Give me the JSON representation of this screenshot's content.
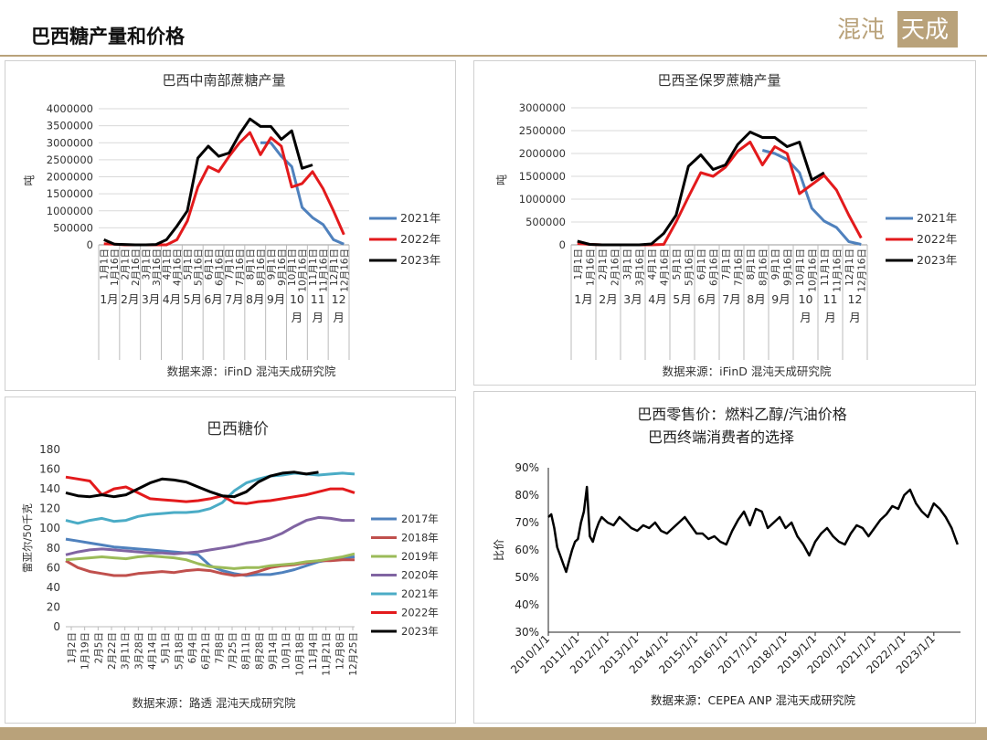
{
  "page": {
    "title": "巴西糖产量和价格",
    "logo_text": "混沌天成"
  },
  "colors": {
    "accent": "#b9a27a",
    "y2021": "#4f81bd",
    "y2022": "#e31a1c",
    "y2023": "#000000",
    "y2017": "#4f81bd",
    "y2018": "#c0504d",
    "y2019": "#9bbb59",
    "y2020": "#8064a2",
    "y2021b": "#4bacc6"
  },
  "chart_data": [
    {
      "type": "line",
      "title": "巴西中南部蔗糖产量",
      "ylabel": "吨",
      "source": "数据来源：iFinD 混沌天成研究院",
      "ylim": [
        0,
        4000000
      ],
      "yticks": [
        "0",
        "500000",
        "1000000",
        "1500000",
        "2000000",
        "2500000",
        "3000000",
        "3500000",
        "4000000"
      ],
      "xticks": [
        "1月1日",
        "1月16日",
        "2月1日",
        "2月16日",
        "3月1日",
        "3月16日",
        "4月1日",
        "4月16日",
        "5月1日",
        "5月16日",
        "6月1日",
        "6月16日",
        "7月1日",
        "7月16日",
        "8月1日",
        "8月16日",
        "9月1日",
        "9月16日",
        "10月1日",
        "10月16日",
        "11月1日",
        "11月16日",
        "12月1日",
        "12月16日"
      ],
      "months": [
        "1月",
        "2月",
        "3月",
        "4月",
        "5月",
        "6月",
        "7月",
        "8月",
        "9月",
        "10\n月",
        "11\n月",
        "12\n月"
      ],
      "series": [
        {
          "name": "2021年",
          "values": [
            null,
            null,
            null,
            null,
            null,
            null,
            null,
            null,
            null,
            null,
            null,
            null,
            null,
            null,
            null,
            3000000,
            3000000,
            2600000,
            2300000,
            1100000,
            800000,
            600000,
            150000,
            20000
          ]
        },
        {
          "name": "2022年",
          "values": [
            30000,
            20000,
            0,
            0,
            0,
            0,
            0,
            150000,
            700000,
            1700000,
            2300000,
            2150000,
            2600000,
            3000000,
            3300000,
            2650000,
            3150000,
            2900000,
            1700000,
            1800000,
            2150000,
            1650000,
            1000000,
            300000
          ]
        },
        {
          "name": "2023年",
          "values": [
            150000,
            20000,
            10000,
            0,
            0,
            10000,
            150000,
            550000,
            1000000,
            2550000,
            2900000,
            2600000,
            2700000,
            3250000,
            3700000,
            3480000,
            3480000,
            3100000,
            3350000,
            2250000,
            2350000,
            null,
            null,
            null
          ]
        }
      ]
    },
    {
      "type": "line",
      "title": "巴西圣保罗蔗糖产量",
      "ylabel": "吨",
      "source": "数据来源：iFinD 混沌天成研究院",
      "ylim": [
        0,
        3000000
      ],
      "yticks": [
        "0",
        "500000",
        "1000000",
        "1500000",
        "2000000",
        "2500000",
        "3000000"
      ],
      "xticks": [
        "1月1日",
        "1月16日",
        "2月1日",
        "2月16日",
        "3月1日",
        "3月16日",
        "4月1日",
        "4月16日",
        "5月1日",
        "5月16日",
        "6月1日",
        "6月16日",
        "7月1日",
        "7月16日",
        "8月1日",
        "8月16日",
        "9月1日",
        "9月16日",
        "10月1日",
        "10月16日",
        "11月1日",
        "11月16日",
        "12月1日",
        "12月16日"
      ],
      "months": [
        "1月",
        "2月",
        "3月",
        "4月",
        "5月",
        "6月",
        "7月",
        "8月",
        "9月",
        "10\n月",
        "11\n月",
        "12\n月"
      ],
      "series": [
        {
          "name": "2021年",
          "values": [
            null,
            null,
            null,
            null,
            null,
            null,
            null,
            null,
            null,
            null,
            null,
            null,
            null,
            null,
            null,
            2070000,
            2000000,
            1870000,
            1580000,
            800000,
            520000,
            380000,
            70000,
            10000
          ]
        },
        {
          "name": "2022年",
          "values": [
            30000,
            10000,
            0,
            0,
            0,
            0,
            0,
            10000,
            500000,
            1050000,
            1580000,
            1500000,
            1700000,
            2050000,
            2250000,
            1750000,
            2150000,
            2000000,
            1120000,
            1320000,
            1520000,
            1200000,
            650000,
            150000
          ]
        },
        {
          "name": "2023年",
          "values": [
            80000,
            10000,
            0,
            0,
            0,
            0,
            20000,
            250000,
            650000,
            1720000,
            1970000,
            1650000,
            1750000,
            2200000,
            2470000,
            2350000,
            2350000,
            2150000,
            2250000,
            1420000,
            1580000,
            null,
            null,
            null
          ]
        }
      ]
    },
    {
      "type": "line",
      "title": "巴西糖价",
      "ylabel": "雷亚尔/50千克",
      "source": "数据来源：路透 混沌天成研究院",
      "ylim": [
        0,
        180
      ],
      "yticks": [
        "0",
        "20",
        "40",
        "60",
        "80",
        "100",
        "120",
        "140",
        "160",
        "180"
      ],
      "xticks": [
        "1月2日",
        "1月19日",
        "2月5日",
        "2月22日",
        "3月11日",
        "3月28日",
        "4月14日",
        "5月1日",
        "5月18日",
        "6月4日",
        "6月21日",
        "7月8日",
        "7月25日",
        "8月11日",
        "8月28日",
        "9月14日",
        "10月1日",
        "10月18日",
        "11月4日",
        "11月21日",
        "12月8日",
        "12月25日"
      ],
      "series": [
        {
          "name": "2017年",
          "values": [
            89,
            87,
            85,
            83,
            81,
            80,
            79,
            78,
            77,
            76,
            75,
            73,
            62,
            57,
            54,
            52,
            53,
            53,
            55,
            58,
            62,
            66,
            68,
            70,
            71
          ]
        },
        {
          "name": "2018年",
          "values": [
            67,
            60,
            56,
            54,
            52,
            52,
            54,
            55,
            56,
            55,
            57,
            58,
            57,
            54,
            52,
            53,
            56,
            60,
            62,
            63,
            65,
            67,
            67,
            68,
            68
          ]
        },
        {
          "name": "2019年",
          "values": [
            68,
            69,
            70,
            71,
            70,
            69,
            71,
            72,
            71,
            70,
            68,
            64,
            61,
            60,
            59,
            60,
            60,
            62,
            63,
            64,
            66,
            67,
            69,
            71,
            74
          ]
        },
        {
          "name": "2020年",
          "values": [
            73,
            76,
            78,
            79,
            78,
            77,
            76,
            75,
            75,
            74,
            75,
            76,
            78,
            80,
            82,
            85,
            87,
            90,
            95,
            102,
            108,
            111,
            110,
            108,
            108
          ]
        },
        {
          "name": "2021年",
          "values": [
            108,
            105,
            108,
            110,
            107,
            108,
            112,
            114,
            115,
            116,
            116,
            117,
            120,
            126,
            138,
            146,
            150,
            153,
            154,
            156,
            155,
            154,
            155,
            156,
            155
          ]
        },
        {
          "name": "2022年",
          "values": [
            152,
            150,
            148,
            134,
            140,
            142,
            136,
            130,
            129,
            128,
            127,
            128,
            130,
            133,
            126,
            125,
            127,
            128,
            130,
            132,
            134,
            137,
            140,
            140,
            136
          ]
        },
        {
          "name": "2023年",
          "values": [
            136,
            133,
            132,
            134,
            132,
            134,
            140,
            146,
            150,
            149,
            147,
            142,
            137,
            133,
            132,
            137,
            147,
            153,
            156,
            157,
            155,
            157,
            null,
            null,
            null
          ]
        }
      ]
    },
    {
      "type": "line",
      "title": "巴西零售价：燃料乙醇/汽油价格",
      "subtitle": "巴西终端消费者的选择",
      "ylabel": "比价",
      "source": "数据来源：CEPEA ANP 混沌天成研究院",
      "ylim": [
        0.3,
        0.9
      ],
      "yticks": [
        "30%",
        "40%",
        "50%",
        "60%",
        "70%",
        "80%",
        "90%"
      ],
      "xticks": [
        "2010/1/1",
        "2011/1/1",
        "2012/1/1",
        "2013/1/1",
        "2014/1/1",
        "2015/1/1",
        "2016/1/1",
        "2017/1/1",
        "2018/1/1",
        "2019/1/1",
        "2020/1/1",
        "2021/1/1",
        "2022/1/1",
        "2023/1/1"
      ],
      "x": [
        2010.0,
        2010.1,
        2010.2,
        2010.3,
        2010.4,
        2010.5,
        2010.6,
        2010.7,
        2010.8,
        2010.9,
        2011.0,
        2011.1,
        2011.2,
        2011.3,
        2011.4,
        2011.5,
        2011.6,
        2011.7,
        2011.8,
        2011.9,
        2012.0,
        2012.2,
        2012.4,
        2012.6,
        2012.8,
        2013.0,
        2013.2,
        2013.4,
        2013.6,
        2013.8,
        2014.0,
        2014.2,
        2014.4,
        2014.6,
        2014.8,
        2015.0,
        2015.2,
        2015.4,
        2015.6,
        2015.8,
        2016.0,
        2016.2,
        2016.4,
        2016.6,
        2016.8,
        2017.0,
        2017.2,
        2017.4,
        2017.6,
        2017.8,
        2018.0,
        2018.2,
        2018.4,
        2018.6,
        2018.8,
        2019.0,
        2019.2,
        2019.4,
        2019.6,
        2019.8,
        2020.0,
        2020.2,
        2020.4,
        2020.6,
        2020.8,
        2021.0,
        2021.2,
        2021.4,
        2021.6,
        2021.8,
        2022.0,
        2022.2,
        2022.4,
        2022.6,
        2022.8,
        2023.0,
        2023.2,
        2023.4,
        2023.6,
        2023.8
      ],
      "values": [
        0.72,
        0.73,
        0.68,
        0.61,
        0.58,
        0.55,
        0.52,
        0.56,
        0.6,
        0.63,
        0.64,
        0.7,
        0.74,
        0.83,
        0.65,
        0.63,
        0.67,
        0.7,
        0.72,
        0.71,
        0.7,
        0.69,
        0.72,
        0.7,
        0.68,
        0.67,
        0.69,
        0.68,
        0.7,
        0.67,
        0.66,
        0.68,
        0.7,
        0.72,
        0.69,
        0.66,
        0.66,
        0.64,
        0.65,
        0.63,
        0.62,
        0.67,
        0.71,
        0.74,
        0.69,
        0.75,
        0.74,
        0.68,
        0.7,
        0.72,
        0.68,
        0.7,
        0.65,
        0.62,
        0.58,
        0.63,
        0.66,
        0.68,
        0.65,
        0.63,
        0.62,
        0.66,
        0.69,
        0.68,
        0.65,
        0.68,
        0.71,
        0.73,
        0.76,
        0.75,
        0.8,
        0.82,
        0.77,
        0.74,
        0.72,
        0.77,
        0.75,
        0.72,
        0.68,
        0.62
      ]
    }
  ]
}
